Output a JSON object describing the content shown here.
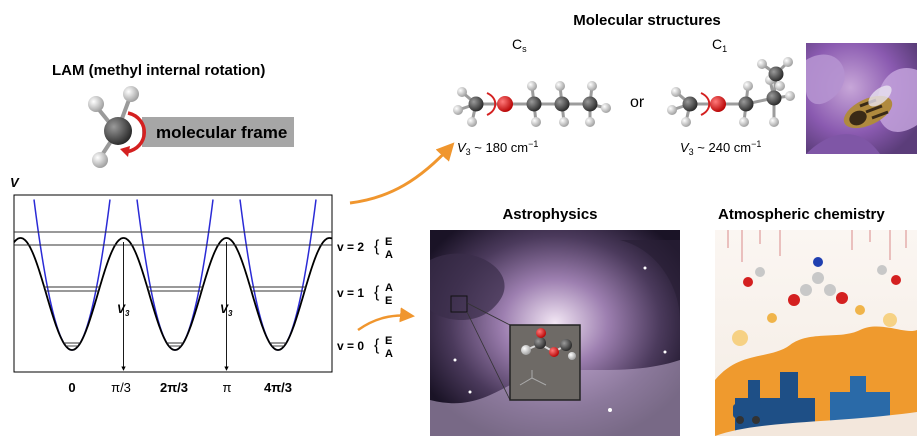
{
  "lam": {
    "title": "LAM (methyl internal rotation)",
    "frame_label": "molecular frame"
  },
  "potential": {
    "v_axis_label": "V",
    "barrier_label": "V3",
    "x_ticks": [
      "0",
      "π/3",
      "2π/3",
      "π",
      "4π/3"
    ],
    "levels": [
      {
        "v": "v = 2",
        "upper": "E",
        "lower": "A"
      },
      {
        "v": "v = 1",
        "upper": "A",
        "lower": "E"
      },
      {
        "v": "v = 0",
        "upper": "E",
        "lower": "A"
      }
    ]
  },
  "structures": {
    "title": "Molecular structures",
    "conformers": [
      {
        "symmetry": "Cs",
        "barrier": "V3 ~ 180 cm−1"
      },
      {
        "symmetry": "C1",
        "barrier": "V3 ~ 240 cm−1"
      }
    ],
    "separator": "or"
  },
  "panels": {
    "astro_title": "Astrophysics",
    "atmo_title": "Atmospheric chemistry"
  },
  "colors": {
    "potential_curve": "#000000",
    "harmonic_curve": "#2b2bd6",
    "arrow": "#f0962e",
    "rotation_arrow": "#d42020",
    "frame_box": "#a6a6a6"
  }
}
